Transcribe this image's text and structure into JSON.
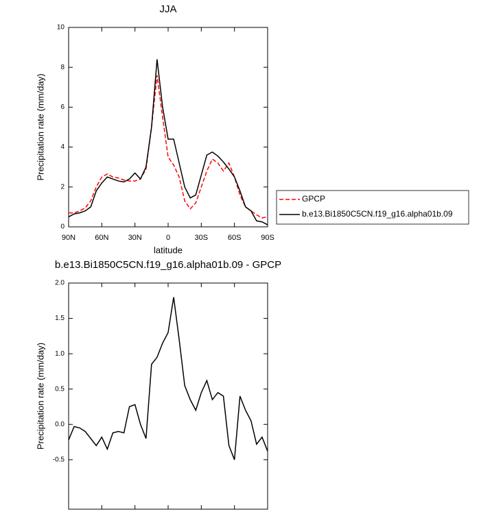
{
  "chart_data": [
    {
      "type": "line",
      "title": "JJA",
      "xlabel": "latitude",
      "ylabel": "Precipitation rate (mm/day)",
      "x": [
        90,
        85,
        80,
        75,
        70,
        65,
        60,
        55,
        50,
        45,
        40,
        35,
        30,
        25,
        20,
        15,
        10,
        5,
        0,
        -5,
        -10,
        -15,
        -20,
        -25,
        -30,
        -35,
        -40,
        -45,
        -50,
        -55,
        -60,
        -65,
        -70,
        -75,
        -80,
        -85,
        -90
      ],
      "xlim": [
        90,
        -90
      ],
      "xticks": [
        {
          "value": 90,
          "label": "90N"
        },
        {
          "value": 60,
          "label": "60N"
        },
        {
          "value": 30,
          "label": "30N"
        },
        0,
        {
          "value": -30,
          "label": "30S"
        },
        {
          "value": -60,
          "label": "60S"
        },
        {
          "value": -90,
          "label": "90S"
        }
      ],
      "ylim": [
        0,
        10
      ],
      "yticks": [
        0,
        2,
        4,
        6,
        8,
        10
      ],
      "legend": "right",
      "series": [
        {
          "name": "GPCP",
          "color": "#ff0000",
          "style": "dashed",
          "values": [
            0.7,
            0.7,
            0.8,
            0.95,
            1.3,
            2.0,
            2.5,
            2.65,
            2.5,
            2.45,
            2.35,
            2.3,
            2.3,
            2.4,
            2.9,
            5.0,
            7.6,
            5.5,
            3.5,
            3.1,
            2.5,
            1.3,
            0.9,
            1.2,
            2.0,
            2.8,
            3.4,
            3.2,
            2.8,
            3.2,
            2.5,
            1.6,
            1.0,
            0.8,
            0.6,
            0.45,
            0.5
          ]
        },
        {
          "name": "b.e13.Bi1850C5CN.f19_g16.alpha01b.09",
          "color": "#000000",
          "style": "solid",
          "values": [
            0.5,
            0.65,
            0.7,
            0.8,
            1.0,
            1.8,
            2.2,
            2.5,
            2.4,
            2.3,
            2.25,
            2.4,
            2.7,
            2.4,
            3.0,
            5.0,
            8.4,
            6.0,
            4.4,
            4.4,
            3.2,
            2.0,
            1.45,
            1.6,
            2.6,
            3.6,
            3.75,
            3.55,
            3.25,
            2.9,
            2.5,
            1.8,
            1.0,
            0.8,
            0.3,
            0.25,
            0.1
          ]
        }
      ]
    },
    {
      "type": "line",
      "title": "b.e13.Bi1850C5CN.f19_g16.alpha01b.09 - GPCP",
      "xlabel": "latitude",
      "ylabel": "Precipitation rate (mm/day)",
      "x": [
        90,
        85,
        80,
        75,
        70,
        65,
        60,
        55,
        50,
        45,
        40,
        35,
        30,
        25,
        20,
        15,
        10,
        5,
        0,
        -5,
        -10,
        -15,
        -20,
        -25,
        -30,
        -35,
        -40,
        -45,
        -50,
        -55,
        -60,
        -65,
        -70,
        -75,
        -80,
        -85,
        -90
      ],
      "xlim": [
        90,
        -90
      ],
      "xticks": [
        {
          "value": 90,
          "label": "90N"
        },
        {
          "value": 60,
          "label": "60N"
        },
        {
          "value": 30,
          "label": "30N"
        },
        0,
        {
          "value": -30,
          "label": "30S"
        },
        {
          "value": -60,
          "label": "60S"
        },
        {
          "value": -90,
          "label": "90S"
        }
      ],
      "ylim": [
        -1.2,
        2.0
      ],
      "yticks": [
        -0.5,
        {
          "value": 0,
          "label": "0.0"
        },
        0.5,
        {
          "value": 1,
          "label": "1.0"
        },
        1.5,
        {
          "value": 2,
          "label": "2.0"
        }
      ],
      "series": [
        {
          "color": "#000000",
          "style": "solid",
          "values": [
            -0.22,
            -0.03,
            -0.05,
            -0.1,
            -0.2,
            -0.3,
            -0.18,
            -0.35,
            -0.12,
            -0.1,
            -0.12,
            0.25,
            0.28,
            0.0,
            -0.2,
            0.85,
            0.95,
            1.15,
            1.3,
            1.8,
            1.2,
            0.55,
            0.35,
            0.2,
            0.45,
            0.62,
            0.35,
            0.45,
            0.4,
            -0.3,
            -0.5,
            0.4,
            0.2,
            0.05,
            -0.28,
            -0.18,
            -0.38
          ]
        }
      ]
    }
  ]
}
